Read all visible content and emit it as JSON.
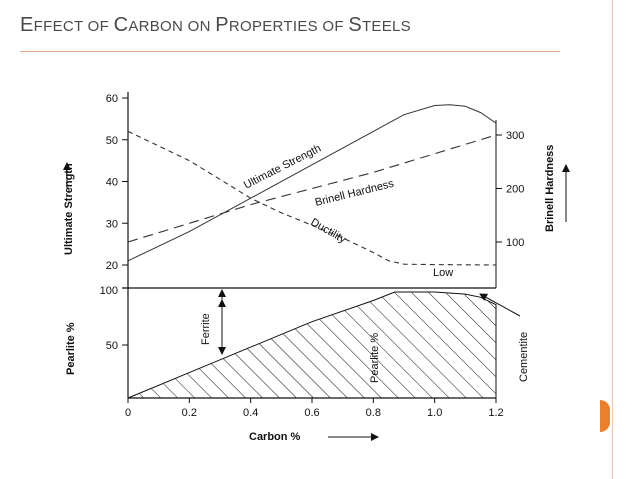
{
  "slide": {
    "title_first_letters": [
      "E",
      "C",
      "P",
      "S"
    ],
    "title_parts": [
      "E",
      "FFECT OF ",
      "C",
      "ARBON ON ",
      "P",
      "ROPERTIES OF ",
      "S",
      "TEELS"
    ],
    "accent_color": "#ee7f2a",
    "rule_color": "#e6a98c"
  },
  "chart_data": [
    {
      "type": "line",
      "panel": "upper",
      "xlim": [
        0,
        1.2
      ],
      "y_left": {
        "label": "Ultimate Strength",
        "ticks": [
          20,
          30,
          40,
          50,
          60
        ],
        "ylim": [
          20,
          60
        ]
      },
      "y_right": {
        "label": "Brinell Hardness",
        "ticks": [
          100,
          200,
          300
        ],
        "ylim": [
          85,
          330
        ]
      },
      "series": [
        {
          "name": "Ultimate Strength",
          "axis": "left",
          "style": "solid",
          "points": [
            [
              0,
              21
            ],
            [
              0.2,
              28
            ],
            [
              0.4,
              36
            ],
            [
              0.6,
              44
            ],
            [
              0.8,
              52
            ],
            [
              0.9,
              56
            ],
            [
              1.0,
              58.2
            ],
            [
              1.05,
              58.4
            ],
            [
              1.1,
              58
            ],
            [
              1.15,
              56.5
            ],
            [
              1.2,
              54
            ]
          ]
        },
        {
          "name": "Brinell Hardness",
          "axis": "right",
          "style": "long-dash",
          "points": [
            [
              0,
              100
            ],
            [
              0.2,
              135
            ],
            [
              0.4,
              170
            ],
            [
              0.6,
              200
            ],
            [
              0.8,
              230
            ],
            [
              1.0,
              265
            ],
            [
              1.2,
              300
            ]
          ]
        },
        {
          "name": "Ductility",
          "axis": "left",
          "style": "short-dash",
          "points": [
            [
              0,
              52
            ],
            [
              0.2,
              45
            ],
            [
              0.4,
              36
            ],
            [
              0.5,
              32.5
            ],
            [
              0.6,
              29.5
            ],
            [
              0.7,
              26.5
            ],
            [
              0.8,
              23
            ],
            [
              0.85,
              21
            ],
            [
              0.9,
              20.2
            ],
            [
              1.0,
              20.1
            ],
            [
              1.2,
              20
            ]
          ]
        }
      ],
      "annotations": [
        "Low"
      ]
    },
    {
      "type": "area",
      "panel": "lower",
      "xlim": [
        0,
        1.2
      ],
      "xlabel": "Carbon %",
      "x_ticks": [
        "0",
        "0.2",
        "0.4",
        "0.6",
        "0.8",
        "1.0",
        "1.2"
      ],
      "x_tick_values": [
        0,
        0.2,
        0.4,
        0.6,
        0.8,
        1.0,
        1.2
      ],
      "y_left": {
        "label": "Pearlite %",
        "ticks": [
          50,
          100
        ],
        "ylim": [
          0,
          100
        ]
      },
      "series": [
        {
          "name": "Pearlite %",
          "style": "hatched",
          "points": [
            [
              0,
              0
            ],
            [
              0.2,
              24
            ],
            [
              0.4,
              48
            ],
            [
              0.6,
              72
            ],
            [
              0.8,
              92
            ],
            [
              0.87,
              100
            ],
            [
              1.0,
              100
            ],
            [
              1.1,
              98
            ],
            [
              1.15,
              95
            ],
            [
              1.2,
              88
            ],
            [
              1.2,
              0
            ]
          ]
        }
      ],
      "annotations": [
        "Ferrite",
        "Pearlite %",
        "Cementite"
      ]
    }
  ]
}
